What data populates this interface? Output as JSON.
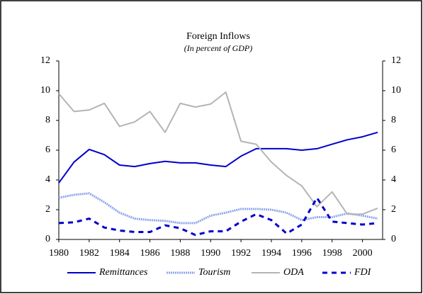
{
  "chart_data": {
    "type": "line",
    "title": "Foreign Inflows",
    "subtitle": "(In percent of GDP)",
    "x": [
      1980,
      1981,
      1982,
      1983,
      1984,
      1985,
      1986,
      1987,
      1988,
      1989,
      1990,
      1991,
      1992,
      1993,
      1994,
      1995,
      1996,
      1997,
      1998,
      1999,
      2000,
      2001
    ],
    "xlim": [
      1980,
      2001
    ],
    "xticks": [
      1980,
      1982,
      1984,
      1986,
      1988,
      1990,
      1992,
      1994,
      1996,
      1998,
      2000
    ],
    "ylim": [
      0,
      12
    ],
    "yticks": [
      0,
      2,
      4,
      6,
      8,
      10,
      12
    ],
    "y2lim": [
      0,
      12
    ],
    "y2ticks": [
      0,
      2,
      4,
      6,
      8,
      10,
      12
    ],
    "grid": false,
    "legend": "bottom",
    "series": [
      {
        "name": "Remittances",
        "color": "#0000cc",
        "style": "solid",
        "values": [
          3.8,
          5.2,
          6.05,
          5.7,
          5.0,
          4.9,
          5.1,
          5.25,
          5.15,
          5.15,
          5.0,
          4.9,
          5.6,
          6.1,
          6.1,
          6.1,
          6.0,
          6.1,
          6.4,
          6.7,
          6.9,
          7.2
        ]
      },
      {
        "name": "Tourism",
        "color": "#8fa6ee",
        "style": "dotted",
        "values": [
          2.8,
          3.0,
          3.1,
          2.5,
          1.8,
          1.4,
          1.3,
          1.25,
          1.1,
          1.1,
          1.6,
          1.8,
          2.05,
          2.05,
          2.0,
          1.8,
          1.3,
          1.5,
          1.5,
          1.75,
          1.6,
          1.4
        ]
      },
      {
        "name": "ODA",
        "color": "#b4b4b4",
        "style": "solid",
        "values": [
          9.8,
          8.6,
          8.7,
          9.15,
          7.6,
          7.9,
          8.6,
          7.2,
          9.15,
          8.9,
          9.1,
          9.9,
          6.6,
          6.4,
          5.2,
          4.3,
          3.6,
          2.2,
          3.2,
          1.7,
          1.7,
          2.1
        ]
      },
      {
        "name": "FDI",
        "color": "#0000cc",
        "style": "dashed",
        "values": [
          1.1,
          1.15,
          1.4,
          0.8,
          0.6,
          0.5,
          0.5,
          0.95,
          0.75,
          0.3,
          0.55,
          0.55,
          1.2,
          1.7,
          1.3,
          0.4,
          1.0,
          2.8,
          1.2,
          1.1,
          1.0,
          1.1
        ]
      }
    ]
  }
}
